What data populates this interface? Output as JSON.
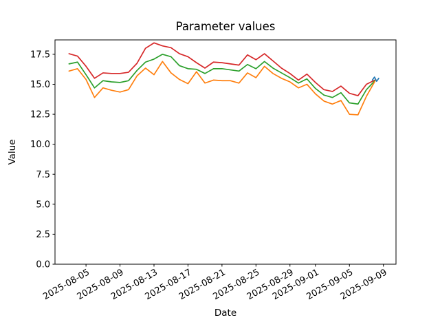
{
  "chart_data": {
    "type": "line",
    "title": "Parameter values",
    "xlabel": "Date",
    "ylabel": "Value",
    "grid": false,
    "legend": "none",
    "background": "#ffffff",
    "axis_color": "#000000",
    "ylim": [
      0,
      18.7
    ],
    "xlim_days": [
      -1.65,
      38.48
    ],
    "start_date": "2025-08-03",
    "y_tick_values": [
      0.0,
      2.5,
      5.0,
      7.5,
      10.0,
      12.5,
      15.0,
      17.5
    ],
    "y_tick_labels": [
      "0.0",
      "2.5",
      "5.0",
      "7.5",
      "10.0",
      "12.5",
      "15.0",
      "17.5"
    ],
    "x_tick_days": [
      2,
      6,
      10,
      14,
      18,
      22,
      26,
      29,
      33,
      37
    ],
    "x_tick_labels": [
      "2025-08-05",
      "2025-08-09",
      "2025-08-13",
      "2025-08-17",
      "2025-08-21",
      "2025-08-25",
      "2025-08-29",
      "2025-09-01",
      "2025-09-05",
      "2025-09-09"
    ],
    "x_tick_rotation_deg": 30,
    "dates": [
      "2025-08-03",
      "2025-08-04",
      "2025-08-05",
      "2025-08-06",
      "2025-08-07",
      "2025-08-08",
      "2025-08-09",
      "2025-08-10",
      "2025-08-11",
      "2025-08-12",
      "2025-08-13",
      "2025-08-14",
      "2025-08-15",
      "2025-08-16",
      "2025-08-17",
      "2025-08-18",
      "2025-08-19",
      "2025-08-20",
      "2025-08-21",
      "2025-08-22",
      "2025-08-23",
      "2025-08-24",
      "2025-08-25",
      "2025-08-26",
      "2025-08-27",
      "2025-08-28",
      "2025-08-29",
      "2025-08-30",
      "2025-08-31",
      "2025-09-01",
      "2025-09-02",
      "2025-09-03",
      "2025-09-04",
      "2025-09-05",
      "2025-09-06",
      "2025-09-07",
      "2025-09-08"
    ],
    "series": [
      {
        "name": "red-line",
        "color": "#d62728",
        "x_days": [
          0,
          1,
          2,
          3,
          4,
          5,
          6,
          7,
          8,
          9,
          10,
          11,
          12,
          13,
          14,
          15,
          16,
          17,
          18,
          19,
          20,
          21,
          22,
          23,
          24,
          25,
          26,
          27,
          28,
          29,
          30,
          31,
          32,
          33,
          34,
          35,
          36
        ],
        "values": [
          17.55,
          17.35,
          16.5,
          15.5,
          15.95,
          15.9,
          15.9,
          16.0,
          16.75,
          18.0,
          18.45,
          18.2,
          18.05,
          17.55,
          17.3,
          16.8,
          16.35,
          16.85,
          16.8,
          16.7,
          16.6,
          17.45,
          17.05,
          17.55,
          16.95,
          16.35,
          15.9,
          15.35,
          15.85,
          15.15,
          14.55,
          14.4,
          14.85,
          14.25,
          14.05,
          15.0,
          15.35
        ]
      },
      {
        "name": "green-line",
        "color": "#2ca02c",
        "x_days": [
          0,
          1,
          2,
          3,
          4,
          5,
          6,
          7,
          8,
          9,
          10,
          11,
          12,
          13,
          14,
          15,
          16,
          17,
          18,
          19,
          20,
          21,
          22,
          23,
          24,
          25,
          26,
          27,
          28,
          29,
          30,
          31,
          32,
          33,
          34,
          35,
          36
        ],
        "values": [
          16.7,
          16.85,
          15.8,
          14.7,
          15.3,
          15.2,
          15.15,
          15.3,
          16.15,
          16.85,
          17.1,
          17.5,
          17.3,
          16.55,
          16.3,
          16.25,
          15.9,
          16.3,
          16.3,
          16.2,
          16.1,
          16.65,
          16.3,
          16.9,
          16.35,
          15.95,
          15.55,
          15.1,
          15.45,
          14.65,
          14.1,
          13.9,
          14.3,
          13.45,
          13.35,
          14.55,
          15.3
        ]
      },
      {
        "name": "orange-line",
        "color": "#ff7f0e",
        "x_days": [
          0,
          1,
          2,
          3,
          4,
          5,
          6,
          7,
          8,
          9,
          10,
          11,
          12,
          13,
          14,
          15,
          16,
          17,
          18,
          19,
          20,
          21,
          22,
          23,
          24,
          25,
          26,
          27,
          28,
          29,
          30,
          31,
          32,
          33,
          34,
          35,
          36
        ],
        "values": [
          16.1,
          16.3,
          15.4,
          13.9,
          14.7,
          14.5,
          14.35,
          14.55,
          15.7,
          16.35,
          15.8,
          16.9,
          15.95,
          15.4,
          15.05,
          16.05,
          15.1,
          15.35,
          15.3,
          15.3,
          15.1,
          15.95,
          15.55,
          16.5,
          15.9,
          15.5,
          15.2,
          14.7,
          15.0,
          14.2,
          13.6,
          13.35,
          13.65,
          12.5,
          12.45,
          14.0,
          15.25
        ]
      },
      {
        "name": "blue-line",
        "color": "#1f77b4",
        "x_days": [
          35.7,
          35.95,
          36.2,
          36.45
        ],
        "values": [
          15.35,
          15.6,
          15.25,
          15.5
        ]
      }
    ]
  }
}
